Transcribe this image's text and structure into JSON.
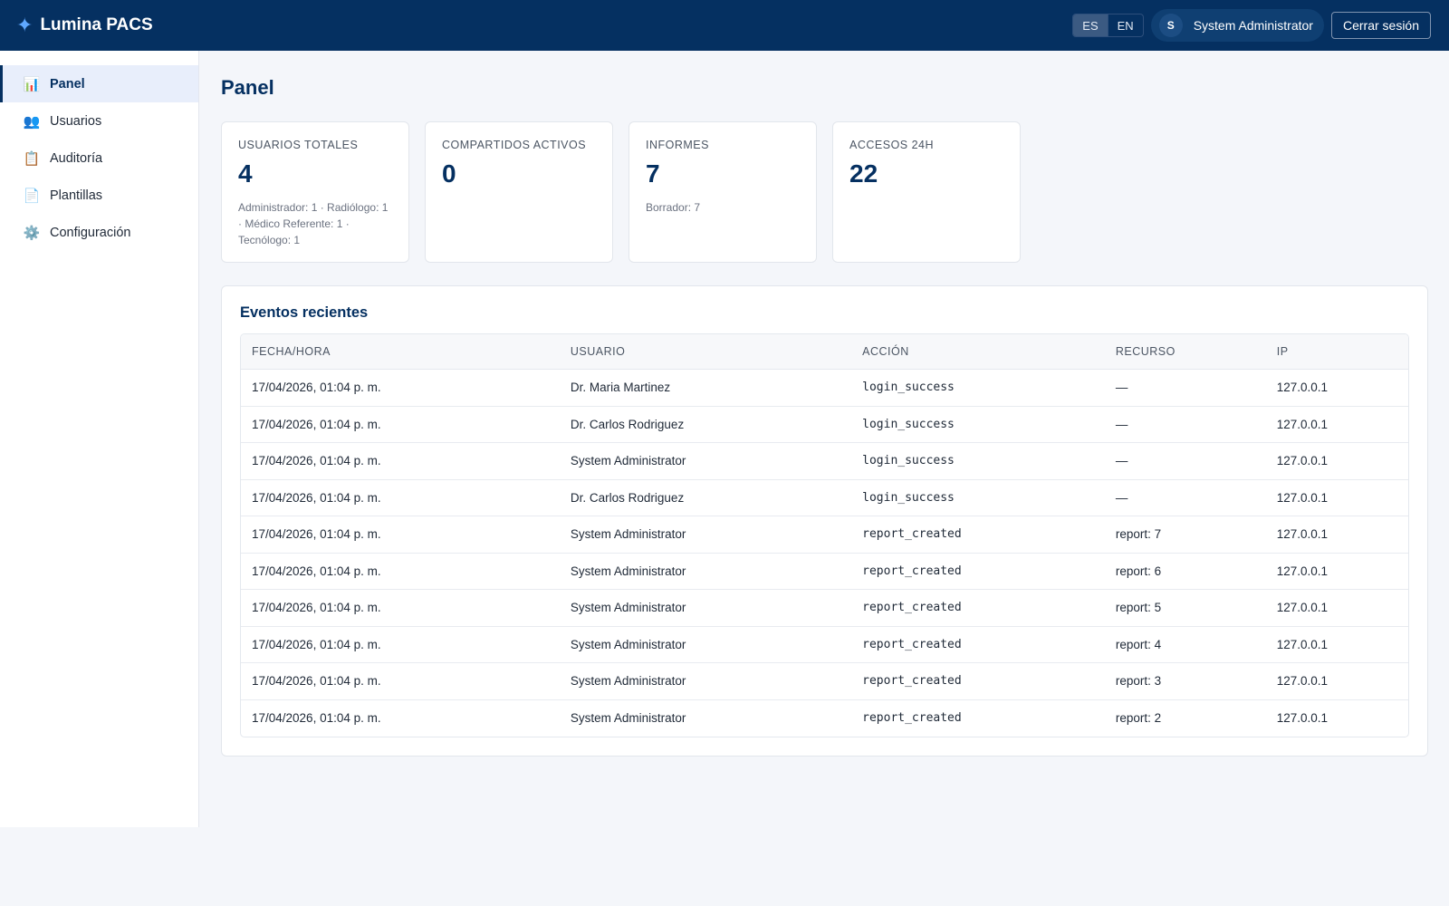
{
  "header": {
    "brand": "Lumina PACS",
    "languages": [
      {
        "code": "ES",
        "active": true
      },
      {
        "code": "EN",
        "active": false
      }
    ],
    "user": {
      "initial": "S",
      "name": "System Administrator"
    },
    "logout_label": "Cerrar sesión"
  },
  "sidebar": {
    "items": [
      {
        "label": "Panel",
        "icon": "bar-chart-icon",
        "active": true
      },
      {
        "label": "Usuarios",
        "icon": "users-icon",
        "active": false
      },
      {
        "label": "Auditoría",
        "icon": "clipboard-icon",
        "active": false
      },
      {
        "label": "Plantillas",
        "icon": "document-icon",
        "active": false
      },
      {
        "label": "Configuración",
        "icon": "gear-icon",
        "active": false
      }
    ]
  },
  "main": {
    "title": "Panel",
    "stats": [
      {
        "label": "Usuarios totales",
        "value": "4",
        "sub": "Administrador: 1 · Radiólogo: 1 · Médico Referente: 1 · Tecnólogo: 1"
      },
      {
        "label": "Compartidos activos",
        "value": "0",
        "sub": ""
      },
      {
        "label": "Informes",
        "value": "7",
        "sub": "Borrador: 7"
      },
      {
        "label": "Accesos 24h",
        "value": "22",
        "sub": ""
      }
    ],
    "events": {
      "title": "Eventos recientes",
      "columns": [
        "Fecha/Hora",
        "Usuario",
        "Acción",
        "Recurso",
        "IP"
      ],
      "rows": [
        [
          "17/04/2026, 01:04 p. m.",
          "Dr. Maria Martinez",
          "login_success",
          "—",
          "127.0.0.1"
        ],
        [
          "17/04/2026, 01:04 p. m.",
          "Dr. Carlos Rodriguez",
          "login_success",
          "—",
          "127.0.0.1"
        ],
        [
          "17/04/2026, 01:04 p. m.",
          "System Administrator",
          "login_success",
          "—",
          "127.0.0.1"
        ],
        [
          "17/04/2026, 01:04 p. m.",
          "Dr. Carlos Rodriguez",
          "login_success",
          "—",
          "127.0.0.1"
        ],
        [
          "17/04/2026, 01:04 p. m.",
          "System Administrator",
          "report_created",
          "report: 7",
          "127.0.0.1"
        ],
        [
          "17/04/2026, 01:04 p. m.",
          "System Administrator",
          "report_created",
          "report: 6",
          "127.0.0.1"
        ],
        [
          "17/04/2026, 01:04 p. m.",
          "System Administrator",
          "report_created",
          "report: 5",
          "127.0.0.1"
        ],
        [
          "17/04/2026, 01:04 p. m.",
          "System Administrator",
          "report_created",
          "report: 4",
          "127.0.0.1"
        ],
        [
          "17/04/2026, 01:04 p. m.",
          "System Administrator",
          "report_created",
          "report: 3",
          "127.0.0.1"
        ],
        [
          "17/04/2026, 01:04 p. m.",
          "System Administrator",
          "report_created",
          "report: 2",
          "127.0.0.1"
        ]
      ]
    }
  }
}
